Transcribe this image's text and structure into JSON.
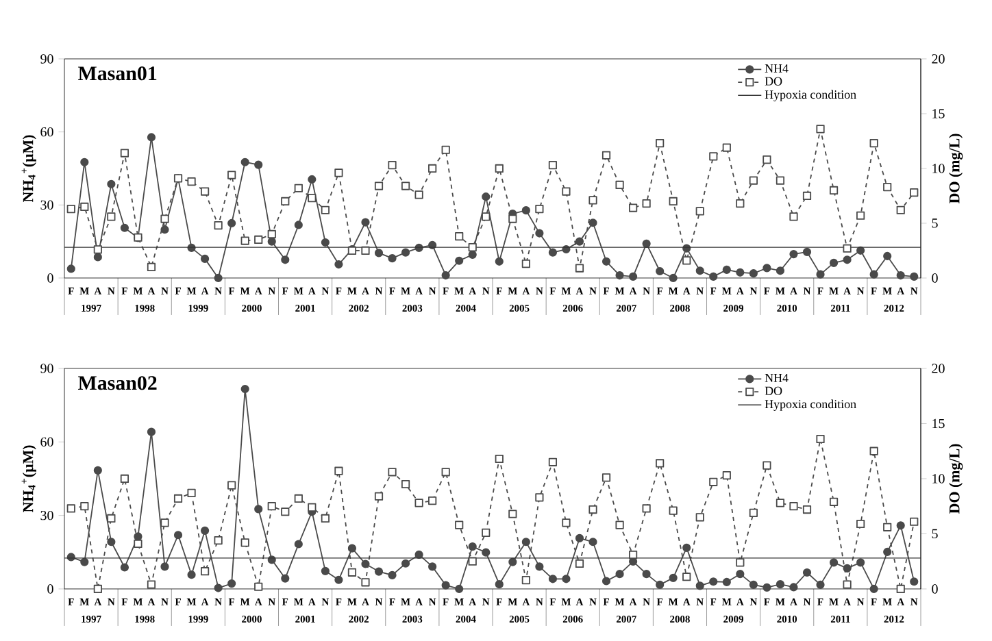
{
  "chart_data": [
    {
      "type": "line",
      "title": "Masan01",
      "ylabel": "NH$_{4}$$^{+}$(μM)",
      "y2label": "DO (mg/L)",
      "categories": [
        "F",
        "M",
        "A",
        "N",
        "F",
        "M",
        "A",
        "N",
        "F",
        "M",
        "A",
        "N",
        "F",
        "M",
        "A",
        "N",
        "F",
        "M",
        "A",
        "N",
        "F",
        "M",
        "A",
        "N",
        "F",
        "M",
        "A",
        "N",
        "F",
        "M",
        "A",
        "N",
        "F",
        "M",
        "A",
        "N",
        "F",
        "M",
        "A",
        "N",
        "F",
        "M",
        "A",
        "N",
        "F",
        "M",
        "A",
        "N",
        "F",
        "M",
        "A",
        "N",
        "F",
        "M",
        "A",
        "N",
        "F",
        "M",
        "A",
        "N",
        "F",
        "M",
        "A",
        "N"
      ],
      "annotations": [
        "1997",
        "1998",
        "1999",
        "2000",
        "2001",
        "2002",
        "2003",
        "2004",
        "2005",
        "2006",
        "2007",
        "2008",
        "2009",
        "2010",
        "2011",
        "2012"
      ],
      "series": [
        {
          "name": "NH4",
          "color": "#4a4a4a",
          "marker": "circle",
          "line_style": "solid",
          "values": [
            3.8,
            47.6,
            8.6,
            38.6,
            20.6,
            16.5,
            57.8,
            19.9,
            40.9,
            12.4,
            7.9,
            0,
            22.5,
            47.6,
            46.5,
            15,
            7.5,
            21.8,
            40.5,
            14.6,
            5.6,
            11.8,
            22.9,
            10.3,
            8.1,
            10.5,
            12.4,
            13.5,
            1.1,
            7.1,
            9.6,
            33.4,
            6.8,
            26.4,
            27.8,
            18.4,
            10.5,
            11.8,
            15,
            22.7,
            6.8,
            1.1,
            0.6,
            14.1,
            2.8,
            0,
            12.2,
            3,
            0.6,
            3.4,
            2.3,
            1.9,
            4.1,
            3,
            9.8,
            10.7,
            1.5,
            6.2,
            7.5,
            11.3,
            1.5,
            9,
            1.1,
            0.6
          ]
        },
        {
          "name": "DO",
          "color": "#4a4a4a",
          "marker": "square",
          "line_style": "dashed",
          "axis": "y2",
          "values": [
            6.3,
            6.5,
            2.6,
            5.6,
            11.4,
            3.7,
            1,
            5.4,
            9.1,
            8.8,
            7.9,
            4.8,
            9.4,
            3.4,
            3.5,
            4,
            7,
            8.2,
            7.3,
            6.2,
            9.6,
            2.5,
            2.5,
            8.4,
            10.3,
            8.4,
            7.6,
            10,
            11.7,
            3.8,
            2.8,
            5.6,
            10,
            5.4,
            1.3,
            6.3,
            10.3,
            7.9,
            0.9,
            7.1,
            11.2,
            8.5,
            6.4,
            6.8,
            12.3,
            7,
            1.6,
            6.1,
            11.1,
            11.9,
            6.8,
            8.9,
            10.8,
            8.9,
            5.6,
            7.5,
            13.6,
            8,
            2.7,
            5.7,
            12.3,
            8.3,
            6.2,
            7.8
          ]
        }
      ],
      "ylim": [
        0,
        90
      ],
      "yticks": [
        0,
        30,
        60,
        90
      ],
      "y2lim": [
        0,
        20
      ],
      "y2ticks": [
        0,
        5,
        10,
        15,
        20
      ],
      "ref_lines": [
        {
          "axis": "y2",
          "value": 2.8,
          "label": "Hypoxia condition",
          "color": "#333333",
          "line_style": "solid"
        }
      ],
      "legend": "top right"
    },
    {
      "type": "line",
      "title": "Masan02",
      "ylabel": "NH$_{4}$$^{+}$(μM)",
      "y2label": "DO (mg/L)",
      "categories": [
        "F",
        "M",
        "A",
        "N",
        "F",
        "M",
        "A",
        "N",
        "F",
        "M",
        "A",
        "N",
        "F",
        "M",
        "A",
        "N",
        "F",
        "M",
        "A",
        "N",
        "F",
        "M",
        "A",
        "N",
        "F",
        "M",
        "A",
        "N",
        "F",
        "M",
        "A",
        "N",
        "F",
        "M",
        "A",
        "N",
        "F",
        "M",
        "A",
        "N",
        "F",
        "M",
        "A",
        "N",
        "F",
        "M",
        "A",
        "N",
        "F",
        "M",
        "A",
        "N",
        "F",
        "M",
        "A",
        "N",
        "F",
        "M",
        "A",
        "N",
        "F",
        "M",
        "A",
        "N"
      ],
      "annotations": [
        "1997",
        "1998",
        "1999",
        "2000",
        "2001",
        "2002",
        "2003",
        "2004",
        "2005",
        "2006",
        "2007",
        "2008",
        "2009",
        "2010",
        "2011",
        "2012"
      ],
      "series": [
        {
          "name": "NH4",
          "color": "#4a4a4a",
          "marker": "circle",
          "line_style": "solid",
          "values": [
            13,
            11,
            48.4,
            19.2,
            8.8,
            21.4,
            64.1,
            9.1,
            22,
            5.8,
            23.8,
            0.4,
            2.2,
            81.6,
            32.6,
            11.9,
            4.3,
            18.3,
            31.5,
            7.3,
            3.7,
            16.6,
            10.2,
            7.1,
            5.6,
            10.4,
            14,
            9.1,
            1.5,
            0,
            17.3,
            14.9,
            1.9,
            11,
            19.2,
            9.1,
            4.1,
            4.1,
            20.7,
            19.2,
            3.2,
            6.1,
            11.2,
            6.1,
            1.7,
            4.5,
            16.8,
            1.3,
            3,
            2.8,
            6.1,
            1.7,
            0.6,
            1.9,
            0.7,
            6.7,
            1.7,
            10.8,
            8.4,
            10.8,
            0,
            15.1,
            25.9,
            3
          ]
        },
        {
          "name": "DO",
          "color": "#4a4a4a",
          "marker": "square",
          "line_style": "dashed",
          "axis": "y2",
          "values": [
            7.3,
            7.5,
            0,
            6.4,
            10,
            4.1,
            0.4,
            6,
            8.2,
            8.7,
            1.6,
            4.4,
            9.4,
            4.2,
            0.2,
            7.5,
            7,
            8.2,
            7.4,
            6.4,
            10.7,
            1.5,
            0.6,
            8.4,
            10.6,
            9.5,
            7.8,
            8,
            10.6,
            5.8,
            2.5,
            5.1,
            11.8,
            6.8,
            0.8,
            8.3,
            11.5,
            6,
            2.3,
            7.2,
            10.1,
            5.8,
            3.1,
            7.3,
            11.4,
            7.1,
            1.1,
            6.5,
            9.7,
            10.3,
            2.4,
            6.9,
            11.2,
            7.8,
            7.5,
            7.2,
            13.6,
            7.9,
            0.4,
            5.9,
            12.5,
            5.6,
            0,
            6.1
          ]
        }
      ],
      "ylim": [
        0,
        90
      ],
      "yticks": [
        0,
        30,
        60,
        90
      ],
      "y2lim": [
        0,
        20
      ],
      "y2ticks": [
        0,
        5,
        10,
        15,
        20
      ],
      "ref_lines": [
        {
          "axis": "y2",
          "value": 2.8,
          "label": "Hypoxia condition",
          "color": "#333333",
          "line_style": "solid"
        }
      ],
      "legend": "top right"
    }
  ]
}
